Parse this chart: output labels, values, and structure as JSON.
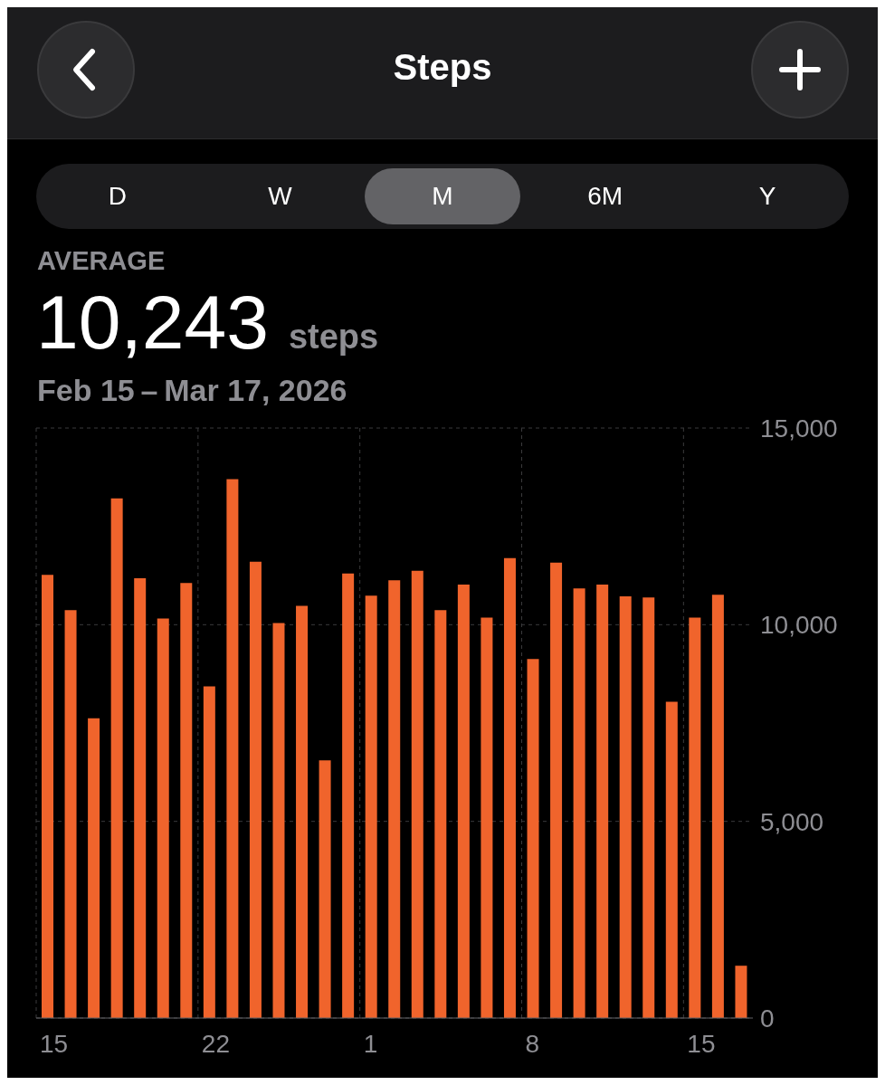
{
  "chart_data": {
    "type": "bar",
    "title": "Steps",
    "subtitle": "Feb 15 – Mar 17, 2026",
    "annotations": [
      "D",
      "W",
      "M",
      "6M",
      "Y",
      "AVERAGE",
      "10,243",
      "steps"
    ],
    "categories": [
      "15",
      null,
      null,
      null,
      null,
      null,
      null,
      "22",
      null,
      null,
      null,
      null,
      null,
      null,
      "1",
      null,
      null,
      null,
      null,
      null,
      null,
      "8",
      null,
      null,
      null,
      null,
      null,
      null,
      "15",
      null,
      null
    ],
    "values": [
      11270,
      10370,
      7620,
      13210,
      11180,
      10160,
      11060,
      8430,
      13700,
      11600,
      10040,
      10480,
      6550,
      11300,
      10740,
      11130,
      11370,
      10370,
      11020,
      10180,
      11690,
      9130,
      11580,
      10920,
      11020,
      10720,
      10690,
      8040,
      10180,
      10760,
      1330
    ],
    "color": "#f0642c",
    "ylim": [
      0,
      15000
    ],
    "yticks": [
      {
        "value": 0,
        "label": "0"
      },
      {
        "value": 5000,
        "label": "5,000"
      },
      {
        "value": 10000,
        "label": "10,000"
      },
      {
        "value": 15000,
        "label": "15,000"
      }
    ],
    "grid": true
  }
}
